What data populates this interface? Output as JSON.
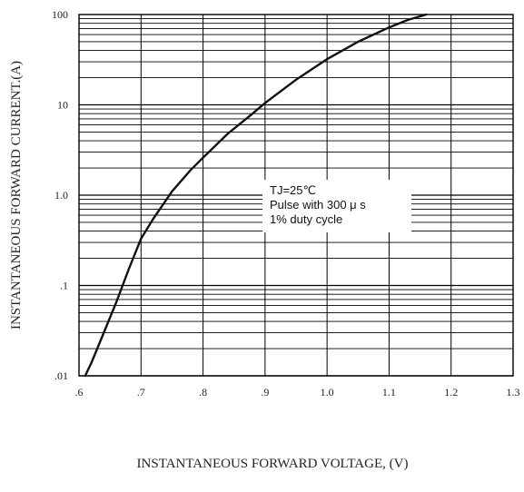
{
  "chart_data": {
    "type": "line",
    "title": "",
    "xlabel": "INSTANTANEOUS FORWARD VOLTAGE, (V)",
    "ylabel": "INSTANTANEOUS FORWARD CURRENT.(A)",
    "x_scale": "linear",
    "y_scale": "log",
    "xlim": [
      0.6,
      1.3
    ],
    "ylim": [
      0.01,
      100
    ],
    "grid": true,
    "x_ticks": [
      {
        "value": 0.6,
        "label": ".6"
      },
      {
        "value": 0.7,
        "label": ".7"
      },
      {
        "value": 0.8,
        "label": ".8"
      },
      {
        "value": 0.9,
        "label": ".9"
      },
      {
        "value": 1.0,
        "label": "1.0"
      },
      {
        "value": 1.1,
        "label": "1.1"
      },
      {
        "value": 1.2,
        "label": "1.2"
      },
      {
        "value": 1.3,
        "label": "1.3"
      }
    ],
    "y_ticks": [
      {
        "value": 0.01,
        "label": ".01"
      },
      {
        "value": 0.1,
        "label": ".1"
      },
      {
        "value": 1,
        "label": "1.0"
      },
      {
        "value": 10,
        "label": "10"
      },
      {
        "value": 100,
        "label": "100"
      }
    ],
    "annotation": {
      "lines": [
        "TJ=25℃",
        "Pulse with 300 μ s",
        "1% duty cycle"
      ]
    },
    "series": [
      {
        "x": [
          0.61,
          0.62,
          0.64,
          0.66,
          0.68,
          0.7,
          0.72,
          0.75,
          0.78,
          0.8,
          0.84,
          0.88,
          0.9,
          0.95,
          1.0,
          1.05,
          1.1,
          1.13,
          1.16
        ],
        "y": [
          0.01,
          0.014,
          0.03,
          0.065,
          0.15,
          0.33,
          0.55,
          1.1,
          1.9,
          2.6,
          4.8,
          8.0,
          10.5,
          19.0,
          32.0,
          50.0,
          72.0,
          87.0,
          100.0
        ]
      }
    ]
  }
}
